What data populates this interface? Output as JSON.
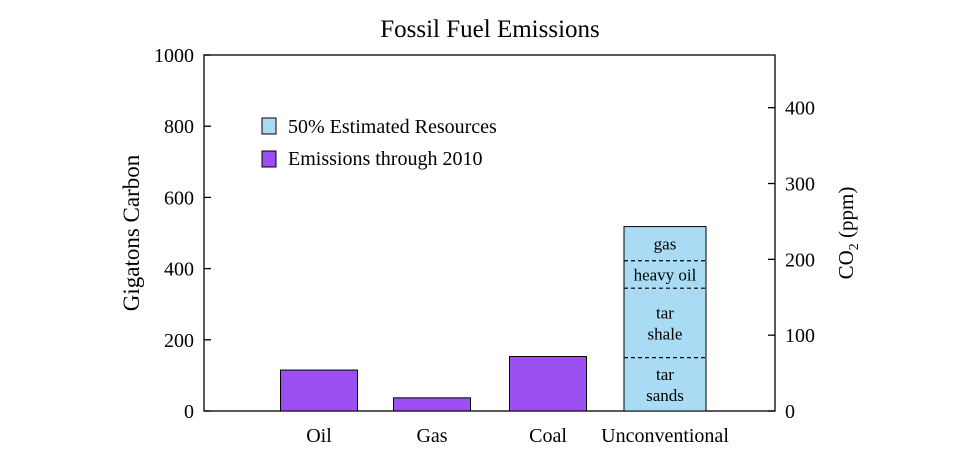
{
  "chart_data": {
    "type": "bar",
    "title": "Fossil Fuel Emissions",
    "ylabel": "Gigatons Carbon",
    "y2label_main": "CO",
    "y2label_sub": "2",
    "y2label_unit": " (ppm)",
    "ylim": [
      0,
      1000
    ],
    "yticks": [
      0,
      200,
      400,
      600,
      800,
      1000
    ],
    "y2ticks": [
      {
        "label": "0",
        "value": 0
      },
      {
        "label": "100",
        "value": 100
      },
      {
        "label": "200",
        "value": 200
      },
      {
        "label": "300",
        "value": 300
      },
      {
        "label": "400",
        "value": 400
      }
    ],
    "categories": [
      "Oil",
      "Gas",
      "Coal",
      "Unconventional"
    ],
    "series": [
      {
        "name": "50% Estimated Resources",
        "color": "#a9dcf4",
        "segments": [
          {
            "category": "Unconventional",
            "label_lines": [
              "tar",
              "sands"
            ],
            "from": 0,
            "to": 150
          },
          {
            "category": "Unconventional",
            "label_lines": [
              "tar",
              "shale"
            ],
            "from": 150,
            "to": 345
          },
          {
            "category": "Unconventional",
            "label_lines": [
              "heavy oil"
            ],
            "from": 345,
            "to": 422
          },
          {
            "category": "Unconventional",
            "label_lines": [
              "gas"
            ],
            "from": 422,
            "to": 518
          }
        ]
      },
      {
        "name": "Emissions through 2010",
        "color": "#9b4ff0",
        "values": [
          115,
          37,
          153,
          null
        ]
      }
    ],
    "legend": [
      {
        "label": "50% Estimated Resources",
        "color": "#a9dcf4"
      },
      {
        "label": "Emissions through 2010",
        "color": "#9b4ff0"
      }
    ]
  }
}
